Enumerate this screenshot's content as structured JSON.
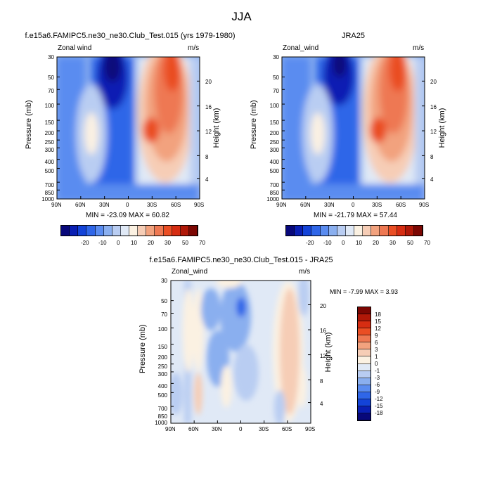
{
  "page": {
    "title": "JJA"
  },
  "colors": {
    "lbar1": [
      "#08087a",
      "#0a1fb3",
      "#1343d8",
      "#2f66e8",
      "#5a8cf0",
      "#8aafef",
      "#b9cdf2",
      "#e0e9f6",
      "#fbf1e2",
      "#f6cdb6",
      "#f2a27e",
      "#ee7852",
      "#ea4e24",
      "#d62d12",
      "#b01808",
      "#7c0703"
    ],
    "lbar2": [
      "#7c0703",
      "#b01808",
      "#d62d12",
      "#ea4e24",
      "#ee7852",
      "#f2a27e",
      "#f6cdb6",
      "#fbf1e2",
      "#e0e9f6",
      "#b9cdf2",
      "#8aafef",
      "#5a8cf0",
      "#2f66e8",
      "#1343d8",
      "#0a1fb3",
      "#08087a"
    ]
  },
  "chart_data": [
    {
      "type": "heatmap",
      "title": "f.e15a6.FAMIPC5.ne30_ne30.Club_Test.015 (yrs 1979-1980)",
      "left_label": "Zonal wind",
      "right_label": "m/s",
      "ylabel": "Pressure (mb)",
      "y2label": "Height (km)",
      "x_ticks": [
        "90N",
        "60N",
        "30N",
        "0",
        "30S",
        "60S",
        "90S"
      ],
      "y_ticks": [
        "30",
        "50",
        "70",
        "100",
        "150",
        "200",
        "250",
        "300",
        "400",
        "500",
        "700",
        "850",
        "1000"
      ],
      "y2_ticks": [
        "20",
        "16",
        "12",
        "8",
        "4"
      ],
      "stats": "MIN = -23.09   MAX = 60.82",
      "colorbar_labels": [
        "-20",
        "-10",
        "0",
        "10",
        "20",
        "30",
        "50",
        "70"
      ]
    },
    {
      "type": "heatmap",
      "title": "JRA25",
      "left_label": "Zonal_wind",
      "right_label": "m/s",
      "ylabel": "Pressure (mb)",
      "y2label": "Height (km)",
      "x_ticks": [
        "90N",
        "60N",
        "30N",
        "0",
        "30S",
        "60S",
        "90S"
      ],
      "y_ticks": [
        "30",
        "50",
        "70",
        "100",
        "150",
        "200",
        "250",
        "300",
        "400",
        "500",
        "700",
        "850",
        "1000"
      ],
      "y2_ticks": [
        "20",
        "16",
        "12",
        "8",
        "4"
      ],
      "stats": "MIN = -21.79   MAX =  57.44",
      "colorbar_labels": [
        "-20",
        "-10",
        "0",
        "10",
        "20",
        "30",
        "50",
        "70"
      ]
    },
    {
      "type": "heatmap",
      "title": "f.e15a6.FAMIPC5.ne30_ne30.Club_Test.015 - JRA25",
      "left_label": "Zonal_wind",
      "right_label": "m/s",
      "ylabel": "Pressure (mb)",
      "y2label": "Height (km)",
      "x_ticks": [
        "90N",
        "60N",
        "30N",
        "0",
        "30S",
        "60S",
        "90S"
      ],
      "y_ticks": [
        "30",
        "50",
        "70",
        "100",
        "150",
        "200",
        "250",
        "300",
        "400",
        "500",
        "700",
        "850",
        "1000"
      ],
      "y2_ticks": [
        "20",
        "16",
        "12",
        "8",
        "4"
      ],
      "stats": "MIN = -7.99   MAX =  3.93",
      "colorbar_labels": [
        "18",
        "15",
        "12",
        "9",
        "6",
        "3",
        "1",
        "0",
        "-1",
        "-3",
        "-6",
        "-9",
        "-12",
        "-15",
        "-18"
      ]
    }
  ]
}
